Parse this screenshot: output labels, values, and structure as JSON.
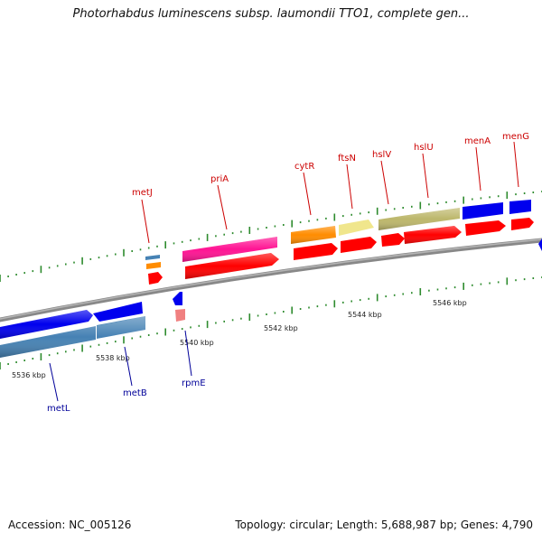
{
  "title": "Photorhabdus luminescens subsp. laumondii TTO1, complete gen...",
  "accession": "Accession: NC_005126",
  "summary": "Topology: circular; Length: 5,688,987 bp; Genes: 4,790",
  "colors": {
    "forward_label": "#cc0000",
    "reverse_label": "#000099",
    "backbone": "#808080",
    "tick": "#2e8b2e"
  },
  "scale_labels": [
    "5536 kbp",
    "5538 kbp",
    "5540 kbp",
    "5542 kbp",
    "5544 kbp",
    "5546 kbp"
  ],
  "gene_labels_forward": [
    "metJ",
    "priA",
    "cytR",
    "ftsN",
    "hslV",
    "hslU",
    "menA",
    "menG"
  ],
  "gene_labels_reverse": [
    "metL",
    "metB",
    "rpmE"
  ]
}
